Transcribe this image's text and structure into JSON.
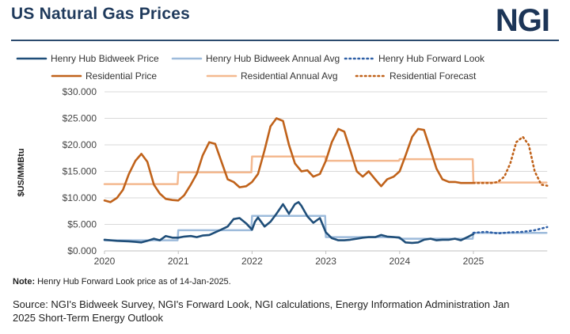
{
  "title": "US Natural Gas Prices",
  "logo": "NGI",
  "note_label": "Note:",
  "note_text": " Henry Hub Forward Look price as of 14-Jan-2025.",
  "source": "Source: NGI's Bidweek Survey, NGI's Forward Look, NGI calculations, Energy Information Administration Jan 2025 Short-Term Energy Outlook",
  "chart_data": {
    "type": "line",
    "ylabel": "$US/MMBtu",
    "xlabel": "",
    "xlim": [
      2020.0,
      2026.0
    ],
    "ylim": [
      0,
      30
    ],
    "x_ticks": [
      2020,
      2021,
      2022,
      2023,
      2024,
      2025
    ],
    "y_ticks": [
      "$0.000",
      "$5.000",
      "$10.000",
      "$15.000",
      "$20.000",
      "$25.000",
      "$30.000"
    ],
    "grid": "horizontal",
    "legend_position": "top",
    "series": [
      {
        "name": "Henry Hub Bidweek Price",
        "color": "#1f4e79",
        "style": "solid",
        "x": [
          2020.0,
          2020.17,
          2020.33,
          2020.42,
          2020.5,
          2020.58,
          2020.67,
          2020.75,
          2020.83,
          2020.92,
          2021.0,
          2021.08,
          2021.17,
          2021.25,
          2021.33,
          2021.42,
          2021.5,
          2021.58,
          2021.67,
          2021.75,
          2021.83,
          2021.92,
          2022.0,
          2022.04,
          2022.08,
          2022.17,
          2022.25,
          2022.33,
          2022.42,
          2022.5,
          2022.58,
          2022.63,
          2022.67,
          2022.75,
          2022.83,
          2022.92,
          2023.0,
          2023.08,
          2023.17,
          2023.25,
          2023.33,
          2023.42,
          2023.5,
          2023.58,
          2023.67,
          2023.75,
          2023.83,
          2023.92,
          2024.0,
          2024.08,
          2024.17,
          2024.25,
          2024.33,
          2024.42,
          2024.5,
          2024.58,
          2024.67,
          2024.75,
          2024.83,
          2024.92,
          2025.0
        ],
        "y": [
          2.1,
          1.9,
          1.8,
          1.7,
          1.6,
          1.9,
          2.3,
          2.0,
          2.8,
          2.5,
          2.5,
          2.7,
          2.8,
          2.6,
          2.9,
          3.0,
          3.5,
          4.0,
          4.6,
          6.0,
          6.2,
          5.2,
          4.0,
          5.5,
          6.3,
          4.6,
          5.5,
          7.0,
          8.8,
          7.0,
          8.8,
          9.2,
          8.5,
          6.5,
          5.3,
          6.2,
          3.5,
          2.4,
          2.0,
          2.0,
          2.1,
          2.3,
          2.5,
          2.6,
          2.6,
          3.0,
          2.7,
          2.6,
          2.5,
          1.6,
          1.5,
          1.6,
          2.1,
          2.3,
          2.0,
          2.1,
          2.1,
          2.3,
          2.0,
          2.6,
          3.2
        ]
      },
      {
        "name": "Henry Hub Bidweek Annual Avg",
        "color": "#9dbbdb",
        "style": "solid",
        "x": [
          2020.0,
          2020.99,
          2021.0,
          2021.99,
          2022.0,
          2022.99,
          2023.0,
          2023.99,
          2024.0,
          2024.99,
          2025.0,
          2025.99
        ],
        "y": [
          2.0,
          2.0,
          3.9,
          3.9,
          6.6,
          6.6,
          2.6,
          2.6,
          2.3,
          2.3,
          3.4,
          3.4
        ]
      },
      {
        "name": "Henry Hub Forward Look",
        "color": "#2e5fa6",
        "style": "dotted",
        "x": [
          2025.0,
          2025.17,
          2025.33,
          2025.5,
          2025.67,
          2025.83,
          2026.0
        ],
        "y": [
          3.4,
          3.6,
          3.3,
          3.5,
          3.6,
          3.9,
          4.5
        ]
      },
      {
        "name": "Residential Price",
        "color": "#c0621a",
        "style": "solid",
        "x": [
          2020.0,
          2020.08,
          2020.17,
          2020.25,
          2020.33,
          2020.42,
          2020.5,
          2020.58,
          2020.67,
          2020.75,
          2020.83,
          2020.92,
          2021.0,
          2021.08,
          2021.17,
          2021.25,
          2021.33,
          2021.42,
          2021.5,
          2021.58,
          2021.67,
          2021.75,
          2021.83,
          2021.92,
          2022.0,
          2022.08,
          2022.17,
          2022.25,
          2022.33,
          2022.42,
          2022.5,
          2022.58,
          2022.67,
          2022.75,
          2022.83,
          2022.92,
          2023.0,
          2023.08,
          2023.17,
          2023.25,
          2023.33,
          2023.42,
          2023.5,
          2023.58,
          2023.67,
          2023.75,
          2023.83,
          2023.92,
          2024.0,
          2024.08,
          2024.17,
          2024.25,
          2024.33,
          2024.42,
          2024.5,
          2024.58,
          2024.67,
          2024.75,
          2024.83,
          2024.92,
          2025.0
        ],
        "y": [
          9.5,
          9.2,
          10.0,
          11.5,
          14.5,
          17.0,
          18.3,
          16.8,
          12.5,
          10.8,
          9.8,
          9.6,
          9.5,
          10.5,
          12.5,
          14.5,
          18.0,
          20.5,
          20.2,
          17.0,
          13.5,
          13.0,
          12.0,
          12.2,
          13.0,
          14.5,
          19.0,
          23.5,
          25.0,
          24.5,
          20.0,
          16.5,
          15.0,
          15.2,
          14.0,
          14.5,
          17.0,
          20.5,
          23.0,
          22.5,
          19.0,
          15.0,
          14.0,
          15.0,
          13.5,
          12.2,
          13.5,
          14.0,
          15.0,
          18.0,
          21.5,
          23.0,
          22.8,
          19.0,
          15.5,
          13.5,
          13.0,
          13.0,
          12.8,
          12.8,
          12.8
        ]
      },
      {
        "name": "Residential Annual Avg",
        "color": "#f4b990",
        "style": "solid",
        "x": [
          2020.0,
          2020.99,
          2021.0,
          2021.99,
          2022.0,
          2022.99,
          2023.0,
          2023.99,
          2024.0,
          2024.99,
          2025.0,
          2025.99
        ],
        "y": [
          12.6,
          12.6,
          14.8,
          14.8,
          17.8,
          17.8,
          17.0,
          17.0,
          17.3,
          17.3,
          12.9,
          12.9
        ]
      },
      {
        "name": "Residential Forecast",
        "color": "#c0621a",
        "style": "dotted",
        "x": [
          2025.0,
          2025.08,
          2025.17,
          2025.25,
          2025.33,
          2025.42,
          2025.5,
          2025.58,
          2025.67,
          2025.75,
          2025.83,
          2025.92,
          2026.0
        ],
        "y": [
          12.8,
          12.8,
          12.8,
          12.8,
          13.0,
          14.0,
          16.5,
          20.5,
          21.5,
          20.0,
          15.0,
          12.5,
          12.3
        ]
      }
    ]
  }
}
